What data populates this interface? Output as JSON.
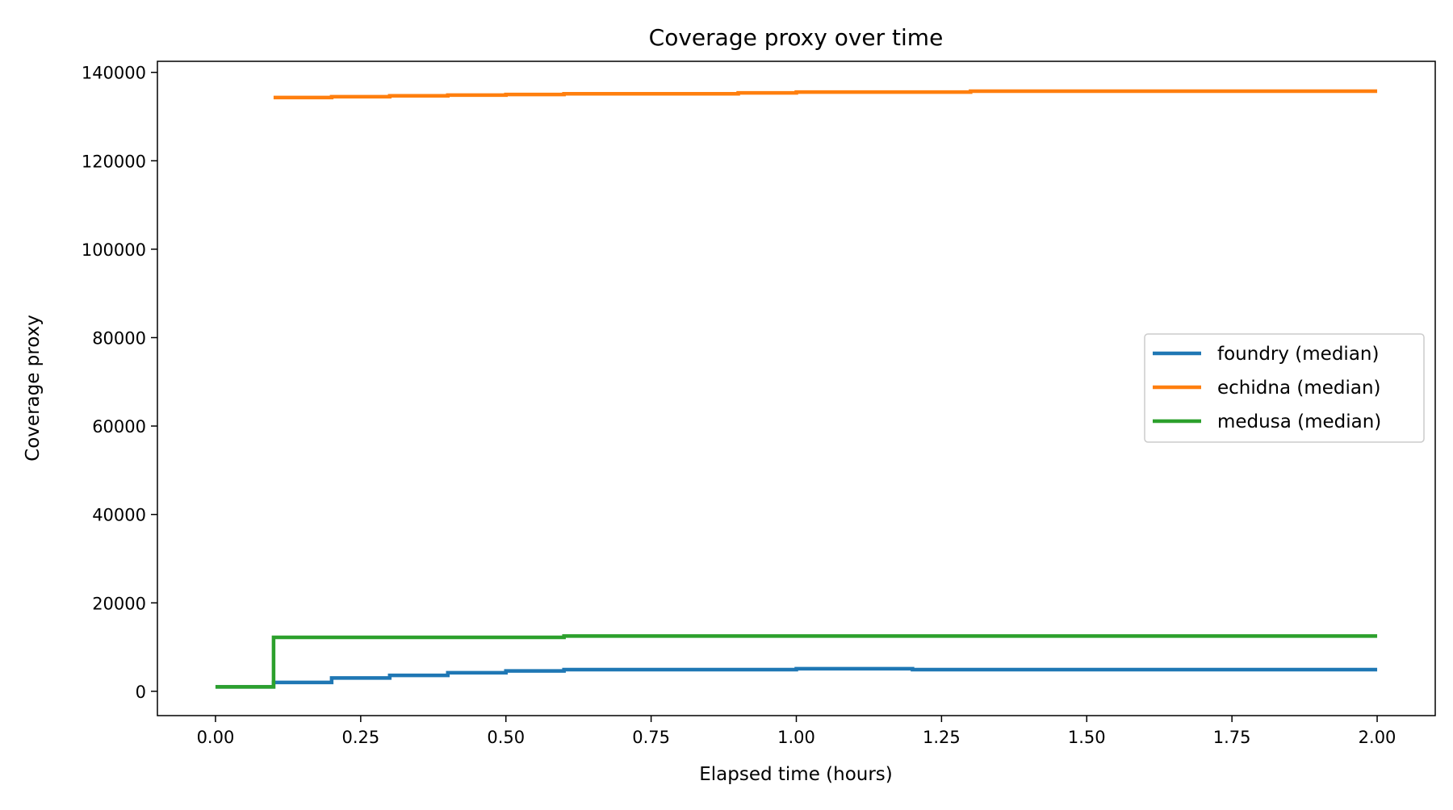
{
  "chart_data": {
    "type": "line",
    "title": "Coverage proxy over time",
    "xlabel": "Elapsed time (hours)",
    "ylabel": "Coverage proxy",
    "xlim": [
      -0.1,
      2.1
    ],
    "ylim": [
      -5500,
      142500
    ],
    "xticks": [
      0,
      0.25,
      0.5,
      0.75,
      1.0,
      1.25,
      1.5,
      1.75,
      2.0
    ],
    "xtick_labels": [
      "0.00",
      "0.25",
      "0.50",
      "0.75",
      "1.00",
      "1.25",
      "1.50",
      "1.75",
      "2.00"
    ],
    "yticks": [
      0,
      20000,
      40000,
      60000,
      80000,
      100000,
      120000,
      140000
    ],
    "ytick_labels": [
      "0",
      "20000",
      "40000",
      "60000",
      "80000",
      "100000",
      "120000",
      "140000"
    ],
    "grid": false,
    "legend_position": "center-right",
    "drawstyle": "steps-post",
    "x": [
      0.0,
      0.1,
      0.2,
      0.3,
      0.4,
      0.5,
      0.6,
      0.7,
      0.8,
      0.9,
      1.0,
      1.1,
      1.2,
      1.3,
      1.4,
      1.5,
      1.6,
      1.7,
      1.8,
      1.9,
      2.0
    ],
    "series": [
      {
        "name": "foundry (median)",
        "color": "#1f77b4",
        "values": [
          1000,
          2000,
          3000,
          3600,
          4200,
          4600,
          4900,
          4900,
          4900,
          4900,
          5100,
          5100,
          4900,
          4900,
          4900,
          4900,
          4900,
          4900,
          4900,
          4900,
          4900
        ]
      },
      {
        "name": "echidna (median)",
        "color": "#ff7f0e",
        "values": [
          null,
          134300,
          134500,
          134700,
          134850,
          135000,
          135150,
          135150,
          135150,
          135350,
          135550,
          135550,
          135550,
          135750,
          135750,
          135750,
          135750,
          135750,
          135750,
          135750,
          135750
        ]
      },
      {
        "name": "medusa (median)",
        "color": "#2ca02c",
        "values": [
          1000,
          12200,
          12200,
          12200,
          12200,
          12200,
          12500,
          12500,
          12500,
          12500,
          12500,
          12500,
          12500,
          12500,
          12500,
          12500,
          12500,
          12500,
          12500,
          12500,
          12500
        ]
      }
    ]
  }
}
